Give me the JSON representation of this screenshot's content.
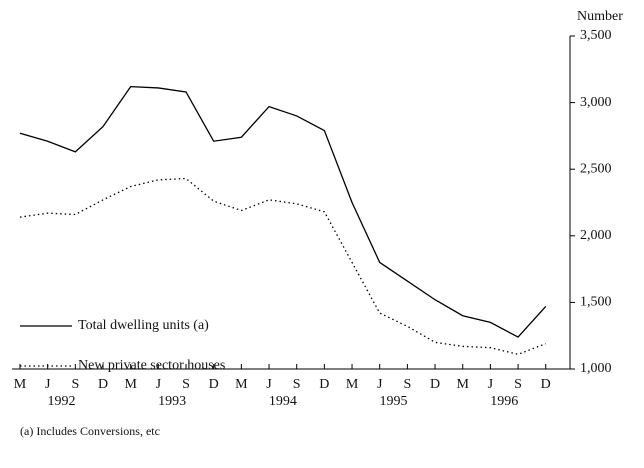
{
  "chart_data": {
    "type": "line",
    "y_axis_label": "Number",
    "footnote": "(a) Includes Conversions, etc",
    "categories": [
      "M",
      "J",
      "S",
      "D",
      "M",
      "J",
      "S",
      "D",
      "M",
      "J",
      "S",
      "D",
      "M",
      "J",
      "S",
      "D",
      "M",
      "J",
      "S",
      "D"
    ],
    "years": [
      "1992",
      "1993",
      "1994",
      "1995",
      "1996"
    ],
    "series": [
      {
        "name": "Total dwelling units (a)",
        "color": "#000000",
        "style": "solid",
        "values": [
          2770,
          2710,
          2630,
          2820,
          3120,
          3110,
          3080,
          2710,
          2740,
          2970,
          2900,
          2790,
          2250,
          1800,
          1660,
          1520,
          1400,
          1350,
          1240,
          1470
        ]
      },
      {
        "name": "New private sector houses",
        "color": "#000000",
        "style": "dotted",
        "values": [
          2140,
          2170,
          2160,
          2270,
          2370,
          2420,
          2430,
          2260,
          2190,
          2270,
          2240,
          2180,
          1800,
          1420,
          1320,
          1200,
          1170,
          1160,
          1110,
          1190
        ]
      }
    ],
    "ylim": [
      1000,
      3500
    ],
    "yticks": [
      {
        "value": 1000,
        "label": "1,000"
      },
      {
        "value": 1500,
        "label": "1,500"
      },
      {
        "value": 2000,
        "label": "2,000"
      },
      {
        "value": 2500,
        "label": "2,500"
      },
      {
        "value": 3000,
        "label": "3,000"
      },
      {
        "value": 3500,
        "label": "3,500"
      }
    ],
    "legend": "lower left"
  }
}
